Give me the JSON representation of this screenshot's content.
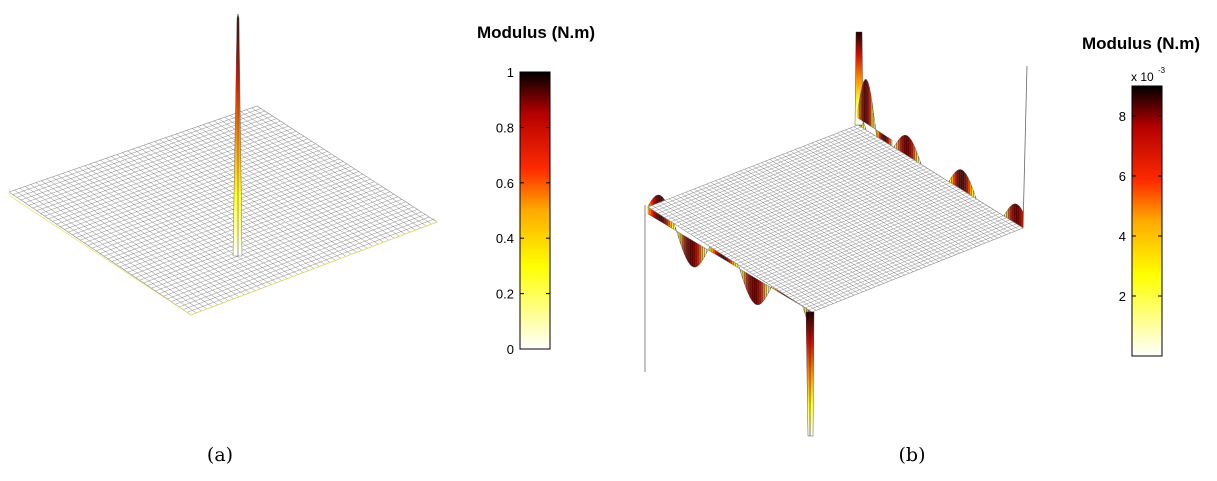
{
  "chart_data": [
    {
      "type": "surface",
      "panel_caption": "(a)",
      "colorbar": {
        "title": "Modulus (N.m)",
        "range": [
          0,
          1
        ],
        "ticks": [
          0,
          0.2,
          0.4,
          0.6,
          0.8,
          1
        ],
        "tick_labels": [
          "0",
          "0.2",
          "0.4",
          "0.6",
          "0.8",
          "1"
        ]
      },
      "colormap": [
        "#ffffff",
        "#ffff00",
        "#ffaa00",
        "#ff2a00",
        "#b40000",
        "#000000"
      ],
      "surface": {
        "shape": "single central spike",
        "peak": 1,
        "base": 0
      }
    },
    {
      "type": "surface",
      "panel_caption": "(b)",
      "colorbar": {
        "title": "Modulus (N.m)",
        "multiplier_base": "x 10",
        "multiplier_exponent": "-3",
        "range": [
          0,
          0.009
        ],
        "ticks": [
          0.002,
          0.004,
          0.006,
          0.008
        ],
        "tick_labels": [
          "2",
          "4",
          "6",
          "8"
        ]
      },
      "colormap": [
        "#ffffff",
        "#ffff00",
        "#ffaa00",
        "#ff2a00",
        "#b40000",
        "#000000"
      ],
      "surface": {
        "shape": "oscillations along plate edges",
        "peak": 0.009,
        "base": 0
      }
    }
  ]
}
